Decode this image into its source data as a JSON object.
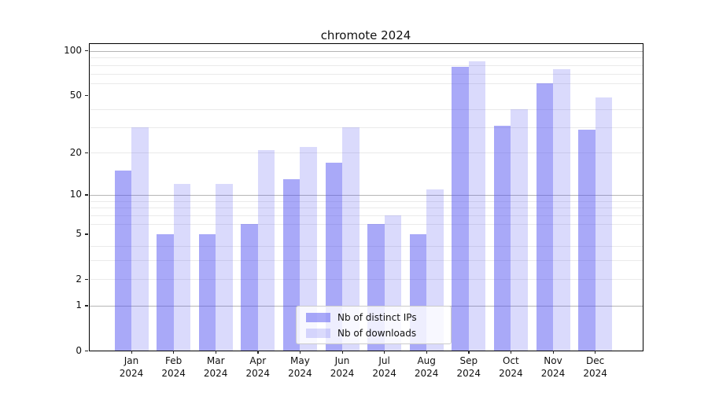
{
  "title": "chromote 2024",
  "legend": {
    "items": [
      {
        "label": "Nb of distinct IPs",
        "color": "rgba(80,80,240,0.49)"
      },
      {
        "label": "Nb of downloads",
        "color": "rgba(80,80,240,0.21)"
      }
    ]
  },
  "chart_data": {
    "type": "bar",
    "title": "chromote 2024",
    "categories": [
      "Jan",
      "Feb",
      "Mar",
      "Apr",
      "May",
      "Jun",
      "Jul",
      "Aug",
      "Sep",
      "Oct",
      "Nov",
      "Dec"
    ],
    "year_label": "2024",
    "series": [
      {
        "name": "Nb of distinct IPs",
        "color": "rgba(80,80,240,0.49)",
        "values": [
          15,
          5,
          5,
          6,
          13,
          17,
          6,
          5,
          78,
          31,
          60,
          29
        ]
      },
      {
        "name": "Nb of downloads",
        "color": "rgba(80,80,240,0.21)",
        "values": [
          30,
          12,
          12,
          21,
          22,
          30,
          7,
          11,
          85,
          40,
          75,
          48
        ]
      }
    ],
    "yscale": "log10(value+1)",
    "yticks": [
      0,
      1,
      2,
      5,
      10,
      20,
      50,
      100
    ],
    "major_gridlines": [
      1,
      10,
      100
    ],
    "minor_gridlines": [
      2,
      3,
      4,
      6,
      7,
      8,
      9,
      20,
      30,
      40,
      60,
      70,
      80,
      90
    ],
    "ylim": [
      0,
      112
    ],
    "xlabel": "",
    "ylabel": "",
    "grid": true,
    "legend_position": "lower center"
  }
}
